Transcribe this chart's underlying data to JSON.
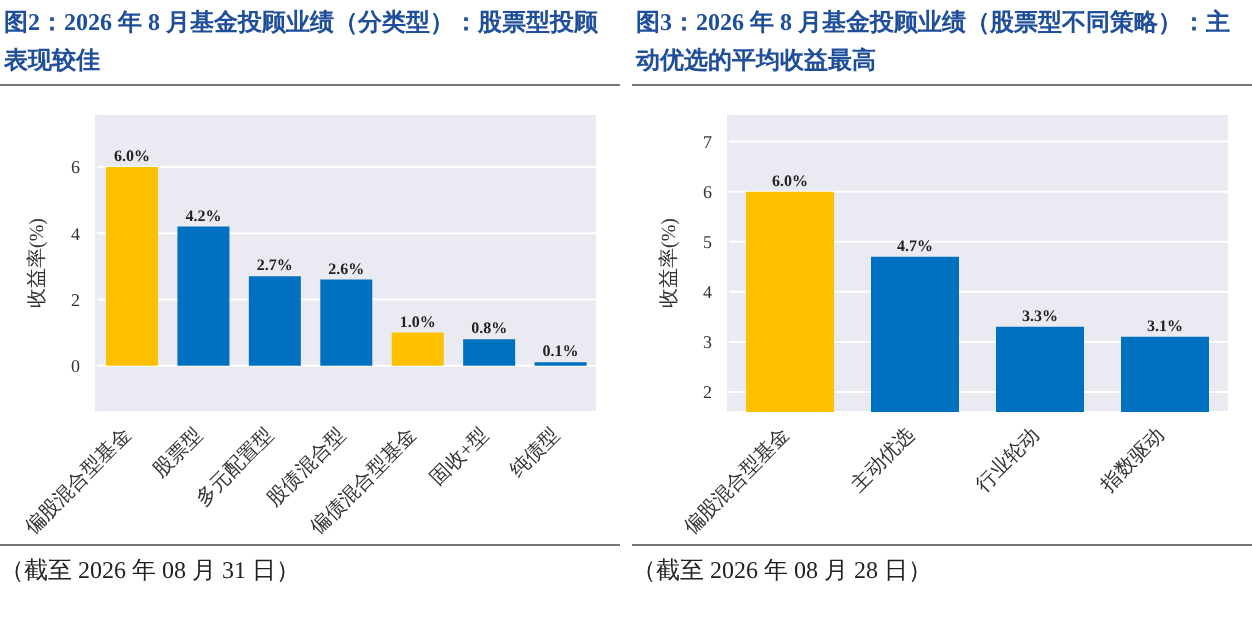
{
  "chart_data": [
    {
      "type": "bar",
      "title": "图2：2026 年 8 月基金投顾业绩（分类型）：股票型投顾表现较佳",
      "ylabel": "收益率(%)",
      "categories": [
        "偏股混合型基金",
        "股票型",
        "多元配置型",
        "股债混合型",
        "偏债混合型基金",
        "固收+型",
        "纯债型"
      ],
      "values": [
        6.0,
        4.2,
        2.7,
        2.6,
        1.0,
        0.8,
        0.1
      ],
      "colors": [
        "#ffc000",
        "#0070c0",
        "#0070c0",
        "#0070c0",
        "#ffc000",
        "#0070c0",
        "#0070c0"
      ],
      "value_labels": [
        "6.0%",
        "4.2%",
        "2.7%",
        "2.6%",
        "1.0%",
        "0.8%",
        "0.1%"
      ],
      "ylim": [
        -1.4,
        7.6
      ],
      "yticks": [
        0,
        2,
        4,
        6
      ],
      "grid": "y",
      "annotations": [
        "（截至 2026 年 08 月 31 日）"
      ]
    },
    {
      "type": "bar",
      "title": "图3：2026 年 8 月基金投顾业绩（股票型不同策略）：主动优选的平均收益最高",
      "ylabel": "收益率(%)",
      "categories": [
        "偏股混合型基金",
        "主动优选",
        "行业轮动",
        "指数驱动"
      ],
      "values": [
        6.0,
        4.7,
        3.3,
        3.1
      ],
      "colors": [
        "#ffc000",
        "#0070c0",
        "#0070c0",
        "#0070c0"
      ],
      "value_labels": [
        "6.0%",
        "4.7%",
        "3.3%",
        "3.1%"
      ],
      "ylim": [
        1.6,
        7.55
      ],
      "yticks": [
        2,
        3,
        4,
        5,
        6,
        7
      ],
      "grid": "y",
      "annotations": [
        "（截至 2026 年 08 月 28 日）"
      ]
    }
  ]
}
